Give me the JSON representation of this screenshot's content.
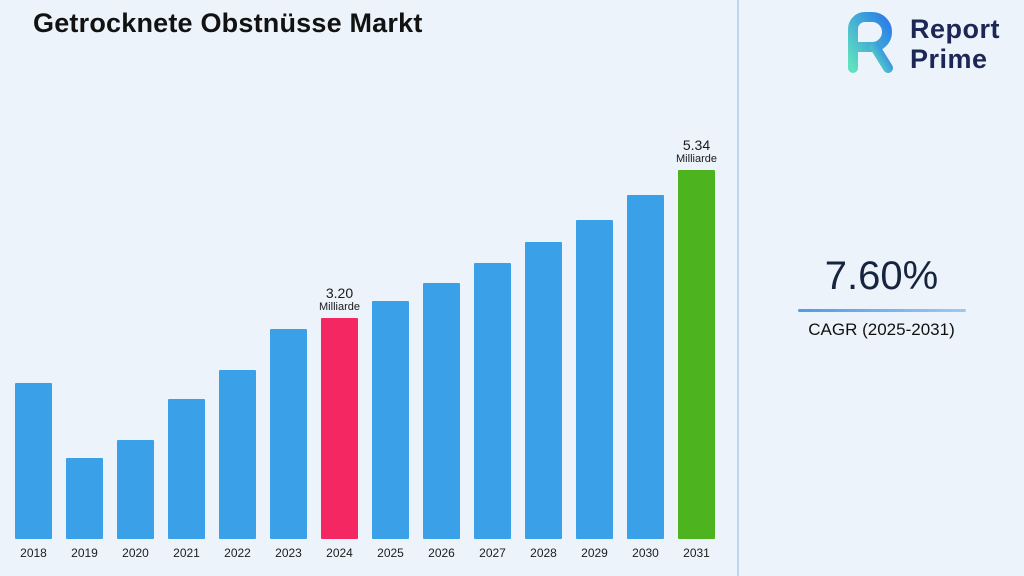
{
  "page": {
    "title": "Getrocknete Obstnüsse Markt"
  },
  "logo": {
    "icon_name": "report-prime-logo-icon",
    "line1": "Report",
    "line2": "Prime"
  },
  "stats": {
    "cagr_value": "7.60%",
    "cagr_label": "CAGR (2025-2031)"
  },
  "colors": {
    "background": "#edf3fb",
    "divider": "#bdd6ef",
    "logo_text": "#1d2755",
    "logo_gradient_start": "#5fe0c0",
    "logo_gradient_end": "#2b7de8"
  },
  "chart_data": {
    "type": "bar",
    "title": "Getrocknete Obstnüsse Markt",
    "xlabel": "",
    "ylabel": "",
    "unit": "Milliarde",
    "ylim": [
      0,
      5.9
    ],
    "grid": false,
    "legend": false,
    "categories": [
      "2018",
      "2019",
      "2020",
      "2021",
      "2022",
      "2023",
      "2024",
      "2025",
      "2026",
      "2027",
      "2028",
      "2029",
      "2030",
      "2031"
    ],
    "values": [
      2.25,
      1.17,
      1.43,
      2.02,
      2.44,
      3.03,
      3.2,
      3.44,
      3.7,
      3.99,
      4.29,
      4.61,
      4.97,
      5.34
    ],
    "colors": {
      "default": "#3aa0e8"
    },
    "highlight_colors": {
      "2024": "#f52762",
      "2031": "#4db31e"
    },
    "annotations": {
      "2024": {
        "value": "3.20",
        "unit": "Milliarde"
      },
      "2031": {
        "value": "5.34",
        "unit": "Milliarde"
      }
    }
  }
}
